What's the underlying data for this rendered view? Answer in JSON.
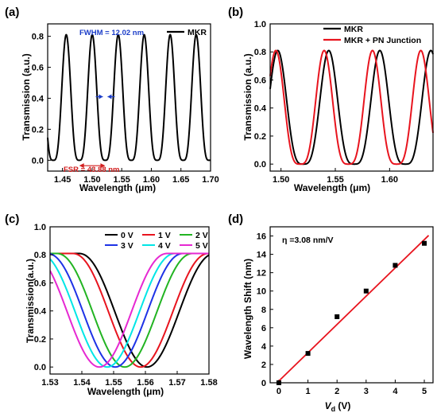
{
  "panels": [
    {
      "label": "(a)",
      "xlabel": "Wavelength (μm)",
      "ylabel": "Transmission (a.u.)",
      "xlim": [
        1.425,
        1.7
      ],
      "ylim": [
        -0.07,
        0.88
      ],
      "xticks": [
        "1.45",
        "1.50",
        "1.55",
        "1.60",
        "1.65",
        "1.70"
      ],
      "xtick_values": [
        1.45,
        1.5,
        1.55,
        1.6,
        1.65,
        1.7
      ],
      "yticks": [
        "0.0",
        "0.2",
        "0.4",
        "0.6",
        "0.8"
      ],
      "ytick_values": [
        0.0,
        0.2,
        0.4,
        0.6,
        0.8
      ],
      "annotations": [
        {
          "text": "FWHM = 12.02 nm",
          "color": "#1a3cc8"
        },
        {
          "text": "FSR = 43.88 nm",
          "color": "#d22020"
        }
      ]
    },
    {
      "label": "(b)",
      "xlabel": "Wavelength (μm)",
      "ylabel": "Transmission (a.u.)",
      "xlim": [
        1.49,
        1.64
      ],
      "ylim": [
        -0.05,
        1.0
      ],
      "xticks": [
        "1.50",
        "1.55",
        "1.60"
      ],
      "xtick_values": [
        1.5,
        1.55,
        1.6
      ],
      "yticks": [
        "0.0",
        "0.2",
        "0.4",
        "0.6",
        "0.8",
        "1.0"
      ],
      "ytick_values": [
        0.0,
        0.2,
        0.4,
        0.6,
        0.8,
        1.0
      ]
    },
    {
      "label": "(c)",
      "xlabel": "Wavelength (μm)",
      "ylabel": "Transmission(a.u.)",
      "xlim": [
        1.53,
        1.58
      ],
      "ylim": [
        -0.05,
        1.0
      ],
      "xticks": [
        "1.53",
        "1.54",
        "1.55",
        "1.56",
        "1.57",
        "1.58"
      ],
      "xtick_values": [
        1.53,
        1.54,
        1.55,
        1.56,
        1.57,
        1.58
      ],
      "yticks": [
        "0.0",
        "0.2",
        "0.4",
        "0.6",
        "0.8",
        "1.0"
      ],
      "ytick_values": [
        0.0,
        0.2,
        0.4,
        0.6,
        0.8,
        1.0
      ]
    },
    {
      "label": "(d)",
      "xlabel_main": "V",
      "xlabel_sub": "d",
      "xlabel_tail": " (V)",
      "ylabel": "Wavelength Shift (nm)",
      "xlim": [
        -0.3,
        5.3
      ],
      "ylim": [
        0,
        17
      ],
      "xticks": [
        "0",
        "1",
        "2",
        "3",
        "4",
        "5"
      ],
      "xtick_values": [
        0,
        1,
        2,
        3,
        4,
        5
      ],
      "yticks": [
        "0",
        "2",
        "4",
        "6",
        "8",
        "10",
        "12",
        "14",
        "16"
      ],
      "ytick_values": [
        0,
        2,
        4,
        6,
        8,
        10,
        12,
        14,
        16
      ],
      "annotations": [
        {
          "text": "η =3.08 nm/V",
          "color": "#000000"
        }
      ]
    }
  ],
  "chart_data": [
    {
      "type": "line",
      "panel": "(a)",
      "series": [
        {
          "name": "MKR",
          "color": "#000000",
          "resonances": [
            1.4783,
            1.5222,
            1.5661,
            1.6099,
            1.6538,
            1.6977
          ],
          "peak": 0.81,
          "min": 0.0,
          "fsr": 0.04388,
          "fwhm": 0.01202
        }
      ]
    },
    {
      "type": "line",
      "panel": "(b)",
      "series": [
        {
          "name": "MKR",
          "color": "#000000",
          "resonances": [
            1.5205,
            1.5675,
            1.6145
          ],
          "peak": 0.81,
          "min": 0.0,
          "fwhm": 0.012
        },
        {
          "name": "MKR + PN Junction",
          "color": "#e8141e",
          "resonances": [
            1.5175,
            1.562,
            1.6065
          ],
          "peak": 0.81,
          "min": 0.0,
          "fwhm": 0.011
        }
      ]
    },
    {
      "type": "line",
      "panel": "(c)",
      "series": [
        {
          "name": "0 V",
          "color": "#000000",
          "resonance": 1.5605
        },
        {
          "name": "1 V",
          "color": "#e8141e",
          "resonance": 1.5585
        },
        {
          "name": "2 V",
          "color": "#22b422",
          "resonance": 1.5535
        },
        {
          "name": "3 V",
          "color": "#1e32e6",
          "resonance": 1.5505
        },
        {
          "name": "4 V",
          "color": "#00e6e6",
          "resonance": 1.548
        },
        {
          "name": "5 V",
          "color": "#e628d2",
          "resonance": 1.5455
        }
      ],
      "peak": 0.81,
      "min": 0.0,
      "fwhm": 0.006
    },
    {
      "type": "scatter",
      "panel": "(d)",
      "x": [
        0,
        1,
        2,
        3,
        4,
        5
      ],
      "y": [
        0.0,
        3.2,
        7.2,
        10.0,
        12.8,
        15.2
      ],
      "marker_color": "#000000",
      "fit": {
        "slope": 3.08,
        "intercept": 0.2,
        "color": "#e8141e"
      }
    }
  ]
}
